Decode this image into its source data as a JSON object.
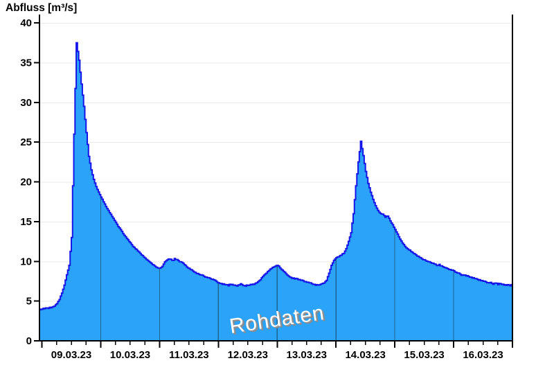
{
  "title": "Abfluss [m³/s]",
  "watermark": "Rohdaten",
  "colors": {
    "background": "#ffffff",
    "fill": "#2aa3f8",
    "line": "#1515e8",
    "grid": "#e9e9e9",
    "axis": "#000000",
    "label": "#000000",
    "day_separator": "#1d6390",
    "watermark_text": "#ffffff",
    "watermark_shadow": "#8c8c8c"
  },
  "chart_data": {
    "type": "area",
    "title": "Abfluss [m³/s]",
    "ylabel": "Abfluss [m³/s]",
    "xlabel": "",
    "series_name": "Rohdaten",
    "ylim": [
      0,
      41
    ],
    "y_ticks": [
      0,
      5,
      10,
      15,
      20,
      25,
      30,
      35,
      40
    ],
    "x_tick_labels": [
      "09.03.23",
      "10.03.23",
      "11.03.23",
      "12.03.23",
      "13.03.23",
      "14.03.23",
      "15.03.23",
      "16.03.23"
    ],
    "x_minor_tick_hours": 6,
    "grid": "horizontal gridlines only, vertical day-separator lines visible inside filled area",
    "legend_position": "none",
    "start": "08.03.23 23:00",
    "end": "17.03.23 00:00",
    "interval_hours": 1,
    "values": [
      3.9,
      4.0,
      4.05,
      4.1,
      4.15,
      4.2,
      4.4,
      4.7,
      5.2,
      6.0,
      7.0,
      8.3,
      9.5,
      13.0,
      26.0,
      37.5,
      35.3,
      32.3,
      29.5,
      26.2,
      23.2,
      21.5,
      20.3,
      19.4,
      18.7,
      18.1,
      17.5,
      16.9,
      16.4,
      15.9,
      15.4,
      14.9,
      14.4,
      14.0,
      13.5,
      13.1,
      12.7,
      12.3,
      11.9,
      11.6,
      11.3,
      11.0,
      10.7,
      10.4,
      10.1,
      9.9,
      9.6,
      9.4,
      9.2,
      9.1,
      9.4,
      9.9,
      10.2,
      10.3,
      10.1,
      10.3,
      10.2,
      10.0,
      9.9,
      9.6,
      9.3,
      9.1,
      8.9,
      8.7,
      8.5,
      8.4,
      8.3,
      8.1,
      8.0,
      7.9,
      7.8,
      7.7,
      7.5,
      7.3,
      7.2,
      7.1,
      7.1,
      7.0,
      7.1,
      7.0,
      6.9,
      7.0,
      7.1,
      7.0,
      6.9,
      7.0,
      7.1,
      7.1,
      7.2,
      7.4,
      7.7,
      8.1,
      8.4,
      8.7,
      9.0,
      9.2,
      9.4,
      9.5,
      9.2,
      8.9,
      8.6,
      8.3,
      8.0,
      7.9,
      7.8,
      7.8,
      7.7,
      7.6,
      7.5,
      7.4,
      7.3,
      7.2,
      7.1,
      7.0,
      7.1,
      7.1,
      7.3,
      7.6,
      8.5,
      9.5,
      10.1,
      10.5,
      10.6,
      10.8,
      11.0,
      11.6,
      12.5,
      13.6,
      16.0,
      19.5,
      22.5,
      25.1,
      23.3,
      21.3,
      19.8,
      18.7,
      17.8,
      17.0,
      16.4,
      16.0,
      15.9,
      15.6,
      15.7,
      15.1,
      14.6,
      14.0,
      13.4,
      12.8,
      12.3,
      11.9,
      11.6,
      11.4,
      11.1,
      10.9,
      10.7,
      10.5,
      10.3,
      10.2,
      10.0,
      9.9,
      9.8,
      9.7,
      9.5,
      9.6,
      9.4,
      9.3,
      9.1,
      9.0,
      8.9,
      8.8,
      8.6,
      8.5,
      8.3,
      8.3,
      8.2,
      8.1,
      8.0,
      7.9,
      7.8,
      7.7,
      7.6,
      7.5,
      7.4,
      7.3,
      7.3,
      7.2,
      7.3,
      7.1,
      7.2,
      7.1,
      7.0,
      7.0,
      7.0,
      7.0
    ]
  }
}
